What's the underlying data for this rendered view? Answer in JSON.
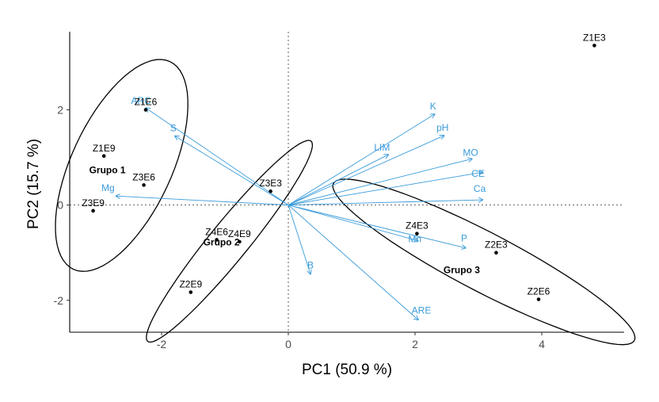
{
  "chart_data": {
    "type": "scatter",
    "title": "",
    "xlabel": "PC1 (50.9 %)",
    "ylabel": "PC2 (15.7 %)",
    "xlim": [
      -3.45,
      5.3
    ],
    "ylim": [
      -2.67,
      3.64
    ],
    "x_ticks": [
      -2,
      0,
      2,
      4
    ],
    "y_ticks": [
      -2,
      0,
      2
    ],
    "grid": false,
    "reference_lines": {
      "x": 0,
      "y": 0,
      "style": "dotted"
    },
    "colors": {
      "points": "#000000",
      "vectors": "#3a9bd9",
      "ellipses": "#000000"
    },
    "points": [
      {
        "label": "Z1E3",
        "x": 4.83,
        "y": 3.35
      },
      {
        "label": "Z1E6",
        "x": -2.25,
        "y": 2.0
      },
      {
        "label": "Z1E9",
        "x": -2.91,
        "y": 1.03
      },
      {
        "label": "Z3E6",
        "x": -2.28,
        "y": 0.42
      },
      {
        "label": "Z3E9",
        "x": -3.08,
        "y": -0.12
      },
      {
        "label": "Z3E3",
        "x": -0.28,
        "y": 0.29
      },
      {
        "label": "Z4E6",
        "x": -1.13,
        "y": -0.73
      },
      {
        "label": "Z4E9",
        "x": -0.77,
        "y": -0.77
      },
      {
        "label": "Z2E9",
        "x": -1.54,
        "y": -1.83
      },
      {
        "label": "Z4E3",
        "x": 2.03,
        "y": -0.6
      },
      {
        "label": "Z2E3",
        "x": 3.28,
        "y": -1.0
      },
      {
        "label": "Z2E6",
        "x": 3.95,
        "y": -1.98
      }
    ],
    "variables": [
      {
        "label": "ARC",
        "x": -2.25,
        "y": 2.04
      },
      {
        "label": "S",
        "x": -1.79,
        "y": 1.45
      },
      {
        "label": "Mg",
        "x": -2.72,
        "y": 0.19
      },
      {
        "label": "K",
        "x": 2.31,
        "y": 1.91
      },
      {
        "label": "pH",
        "x": 2.46,
        "y": 1.46
      },
      {
        "label": "LIM",
        "x": 1.58,
        "y": 1.06
      },
      {
        "label": "MO",
        "x": 2.9,
        "y": 0.97
      },
      {
        "label": "CE",
        "x": 3.07,
        "y": 0.69
      },
      {
        "label": "Ca",
        "x": 3.07,
        "y": 0.11
      },
      {
        "label": "Mn",
        "x": 2.05,
        "y": -0.75
      },
      {
        "label": "P",
        "x": 2.8,
        "y": -0.9
      },
      {
        "label": "B",
        "x": 0.35,
        "y": -1.45
      },
      {
        "label": "ARE",
        "x": 2.05,
        "y": -2.41
      }
    ],
    "groups": [
      {
        "label": "Grupo 1",
        "members": [
          "Z1E6",
          "Z1E9",
          "Z3E6",
          "Z3E9"
        ]
      },
      {
        "label": "Grupo 2",
        "members": [
          "Z3E3",
          "Z4E6",
          "Z4E9",
          "Z2E9"
        ]
      },
      {
        "label": "Grupo 3",
        "members": [
          "Z4E3",
          "Z2E3",
          "Z2E6"
        ]
      }
    ]
  }
}
